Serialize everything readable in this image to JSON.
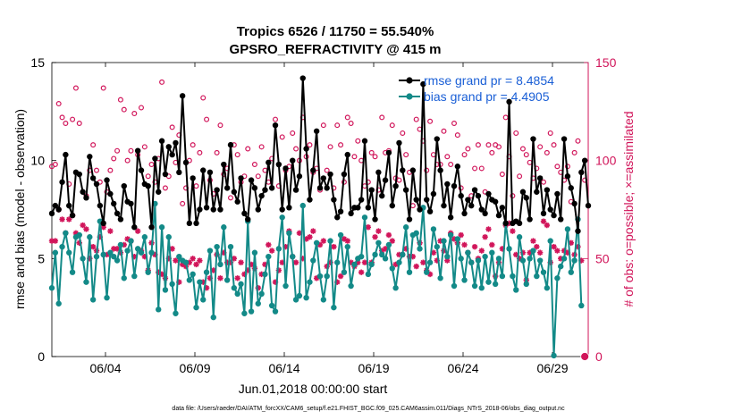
{
  "chart_data": {
    "type": "line",
    "title_line1": "Tropics 6526 / 11750 = 55.540%",
    "title_line2": "GPSRO_REFRACTIVITY @ 415 m",
    "xlabel": "Jun.01,2018 00:00:00 start",
    "ylabel_left": "rmse and bias (model - observation)",
    "ylabel_right": "# of obs: o=possible; ×=assimilated",
    "footer": "data file: /Users/raeder/DAI/ATM_forcXX/CAM6_setup/f.e21.FHIST_BGC.f09_025.CAM6assim.011/Diags_NTrS_2018-06/obs_diag_output.nc",
    "x_tick_labels": [
      "06/04",
      "06/09",
      "06/14",
      "06/19",
      "06/24",
      "06/29"
    ],
    "x_tick_days": [
      4,
      9,
      14,
      19,
      24,
      29
    ],
    "xlim_days": [
      1.0,
      31.0
    ],
    "ylim_left": [
      0,
      15
    ],
    "yticks_left": [
      "0",
      "5",
      "10",
      "15"
    ],
    "ylim_right": [
      0,
      150
    ],
    "yticks_right": [
      "0",
      "50",
      "100",
      "150"
    ],
    "colors": {
      "rmse": "#000000",
      "bias": "#138a88",
      "obs": "#d1155a",
      "legend_text": "#1a5fd6",
      "right_axis": "#d1155a"
    },
    "legend": [
      {
        "name": "rmse grand pr = 8.4854"
      },
      {
        "name": "bias grand pr = 4.4905"
      }
    ],
    "series": [
      {
        "name": "rmse",
        "values": [
          7.3,
          7.7,
          7.5,
          8.9,
          10.3,
          7.7,
          7.2,
          9.4,
          9.3,
          8.4,
          8.1,
          10.2,
          9.1,
          8.8,
          7.7,
          6.8,
          9.0,
          8.3,
          7.8,
          7.3,
          7.0,
          8.7,
          7.9,
          7.8,
          6.6,
          10.5,
          9.5,
          8.8,
          8.7,
          6.6,
          10.1,
          8.4,
          11.0,
          9.3,
          10.7,
          10.3,
          10.9,
          9.4,
          13.3,
          9.9,
          6.8,
          9.1,
          6.8,
          7.5,
          9.5,
          7.6,
          9.4,
          7.5,
          8.5,
          7.5,
          9.8,
          8.6,
          10.8,
          8.4,
          7.9,
          9.1,
          7.3,
          7.0,
          9.0,
          8.6,
          7.5,
          8.2,
          8.5,
          9.9,
          8.6,
          11.8,
          9.8,
          7.5,
          9.6,
          7.6,
          10.0,
          8.5,
          9.2,
          14.2,
          10.6,
          8.0,
          9.5,
          11.5,
          8.6,
          9.1,
          8.6,
          9.3,
          8.0,
          7.1,
          7.4,
          9.3,
          10.3,
          7.3,
          7.6,
          7.6,
          8.0,
          11.0,
          7.6,
          8.5,
          7.0,
          9.4,
          8.2,
          9.0,
          10.4,
          7.7,
          8.7,
          10.9,
          9.5,
          8.5,
          7.0,
          9.5,
          8.0,
          7.5,
          13.9,
          8.0,
          7.4,
          8.3,
          11.1,
          9.5,
          7.7,
          8.8,
          7.1,
          8.7,
          9.7,
          8.2,
          7.3,
          8.0,
          7.7,
          8.5,
          8.2,
          7.5,
          7.3,
          8.3,
          8.0,
          7.9,
          7.2,
          7.6,
          6.8,
          13.0,
          6.8,
          6.9,
          6.8,
          8.4,
          8.1,
          7.0,
          11.1,
          8.4,
          9.1,
          7.3,
          8.5,
          7.5,
          7.2,
          8.3,
          7.0,
          11.1,
          9.2,
          8.6,
          7.8,
          6.4,
          9.4,
          10.0,
          7.7
        ]
      },
      {
        "name": "bias",
        "values": [
          3.5,
          5.3,
          2.7,
          5.6,
          6.3,
          5.3,
          4.3,
          6.1,
          6.2,
          5.0,
          3.8,
          6.1,
          2.9,
          5.1,
          6.9,
          5.2,
          3.0,
          5.3,
          5.1,
          4.9,
          5.7,
          4.0,
          5.4,
          5.9,
          4.1,
          5.5,
          5.3,
          6.1,
          4.3,
          5.3,
          7.8,
          2.4,
          6.6,
          3.4,
          6.1,
          3.7,
          2.2,
          5.1,
          4.9,
          4.8,
          3.9,
          4.2,
          2.5,
          3.8,
          2.9,
          4.3,
          5.4,
          2.0,
          5.6,
          4.7,
          6.6,
          3.9,
          5.6,
          3.5,
          3.2,
          3.7,
          2.2,
          6.9,
          2.3,
          5.3,
          2.7,
          3.2,
          4.2,
          5.1,
          2.6,
          2.3,
          5.5,
          7.1,
          3.6,
          6.3,
          5.1,
          2.9,
          3.1,
          7.7,
          3.0,
          3.8,
          4.9,
          5.8,
          4.1,
          2.9,
          4.1,
          5.9,
          2.5,
          4.8,
          6.2,
          4.3,
          5.6,
          3.6,
          4.7,
          5.0,
          5.1,
          7.1,
          4.2,
          4.7,
          5.2,
          5.8,
          5.2,
          5.0,
          5.7,
          4.5,
          3.5,
          4.8,
          5.2,
          6.6,
          4.3,
          6.2,
          6.3,
          5.5,
          7.6,
          4.3,
          4.8,
          6.5,
          5.6,
          4.0,
          5.9,
          5.1,
          6.2,
          3.6,
          6.0,
          5.0,
          3.9,
          5.3,
          4.8,
          3.6,
          4.9,
          3.5,
          5.1,
          3.8,
          5.3,
          3.7,
          5.0,
          4.1,
          6.8,
          5.5,
          4.1,
          3.4,
          6.1,
          4.9,
          3.7,
          5.0,
          5.4,
          4.1,
          4.9,
          4.3,
          3.5,
          5.9,
          0.05,
          4.0,
          4.6,
          5.0,
          6.5,
          4.3,
          4.9,
          7.0,
          2.6
        ]
      },
      {
        "name": "possible",
        "values": [
          97,
          98,
          129,
          122,
          119,
          88,
          121,
          137,
          119,
          84,
          82,
          95,
          108,
          95,
          89,
          137,
          84,
          95,
          101,
          105,
          131,
          126,
          100,
          105,
          124,
          103,
          127,
          107,
          92,
          98,
          89,
          101,
          140,
          86,
          92,
          117,
          99,
          113,
          78,
          86,
          100,
          108,
          87,
          104,
          132,
          121,
          90,
          83,
          104,
          118,
          93,
          96,
          81,
          108,
          103,
          89,
          92,
          106,
          90,
          98,
          92,
          107,
          95,
          89,
          101,
          121,
          87,
          112,
          95,
          97,
          114,
          106,
          100,
          122,
          102,
          108,
          94,
          96,
          85,
          118,
          95,
          107,
          86,
          118,
          108,
          89,
          122,
          119,
          102,
          110,
          100,
          87,
          89,
          104,
          102,
          85,
          122,
          104,
          105,
          118,
          91,
          90,
          114,
          103,
          94,
          77,
          121,
          116,
          110,
          95,
          120,
          103,
          98,
          98,
          115,
          102,
          98,
          119,
          113,
          86,
          103,
          106,
          82,
          96,
          108,
          96,
          84,
          108,
          104,
          108,
          107,
          93,
          122,
          102,
          82,
          114,
          92,
          106,
          103,
          99,
          91,
          96,
          107,
          89,
          104,
          114,
          108,
          97,
          94,
          90,
          97,
          79,
          104,
          110,
          94,
          90
        ]
      },
      {
        "name": "assimilated",
        "values": [
          59,
          59,
          75,
          70,
          63,
          70,
          72,
          63,
          58,
          67,
          65,
          50,
          56,
          54,
          61,
          66,
          52,
          64,
          55,
          55,
          53,
          57,
          60,
          59,
          51,
          64,
          54,
          51,
          44,
          58,
          52,
          43,
          42,
          40,
          50,
          55,
          49,
          38,
          47,
          46,
          48,
          50,
          47,
          49,
          38,
          35,
          40,
          44,
          52,
          40,
          53,
          48,
          48,
          50,
          40,
          48,
          42,
          44,
          47,
          45,
          35,
          42,
          47,
          57,
          54,
          38,
          44,
          48,
          56,
          64,
          51,
          48,
          63,
          50,
          60,
          61,
          64,
          40,
          57,
          59,
          46,
          48,
          56,
          38,
          41,
          60,
          59,
          48,
          46,
          48,
          43,
          48,
          66,
          48,
          61,
          64,
          54,
          55,
          62,
          59,
          47,
          52,
          52,
          55,
          51,
          51,
          46,
          58,
          48,
          44,
          42,
          53,
          49,
          59,
          54,
          49,
          63,
          60,
          58,
          62,
          57,
          53,
          48,
          56,
          50,
          54,
          61,
          65,
          57,
          41,
          48,
          55,
          67,
          68,
          64,
          52,
          50,
          53,
          39,
          53,
          59,
          56,
          53,
          69,
          67,
          48,
          56,
          54,
          50,
          54,
          53,
          58,
          52,
          56,
          49,
          0
        ]
      }
    ]
  }
}
